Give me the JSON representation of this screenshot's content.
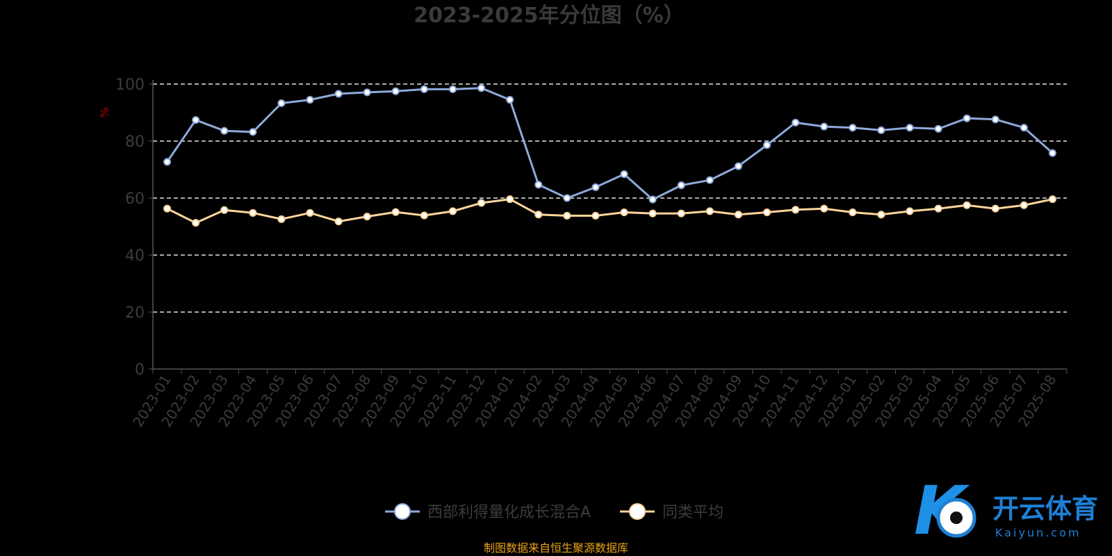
{
  "chart_data": {
    "type": "line",
    "title": "2023-2025年分位图（%）",
    "ylabel": "%",
    "ylim": [
      0,
      100
    ],
    "yticks": [
      0,
      20,
      40,
      60,
      80,
      100
    ],
    "grid": true,
    "legend_position": "bottom",
    "categories": [
      "2023-01",
      "2023-02",
      "2023-03",
      "2023-04",
      "2023-05",
      "2023-06",
      "2023-07",
      "2023-08",
      "2023-09",
      "2023-10",
      "2023-11",
      "2023-12",
      "2024-01",
      "2024-02",
      "2024-03",
      "2024-04",
      "2024-05",
      "2024-06",
      "2024-07",
      "2024-08",
      "2024-09",
      "2024-10",
      "2024-11",
      "2024-12",
      "2025-01",
      "2025-02",
      "2025-03",
      "2025-04",
      "2025-05",
      "2025-06",
      "2025-07",
      "2025-08"
    ],
    "series": [
      {
        "name": "西部利得量化成长混合A",
        "color": "#8eaadb",
        "values": [
          72.7,
          87.4,
          83.6,
          83.2,
          93.3,
          94.5,
          96.6,
          97.1,
          97.5,
          98.2,
          98.2,
          98.6,
          94.5,
          64.7,
          60.0,
          63.8,
          68.4,
          59.5,
          64.5,
          66.3,
          71.2,
          78.6,
          86.5,
          85.1,
          84.7,
          83.8,
          84.7,
          84.3,
          88.0,
          87.6,
          84.7,
          75.8
        ]
      },
      {
        "name": "同类平均",
        "color": "#ffd59a",
        "values": [
          56.3,
          51.3,
          55.8,
          54.8,
          52.6,
          54.8,
          51.8,
          53.5,
          55.1,
          53.9,
          55.4,
          58.3,
          59.6,
          54.2,
          53.8,
          53.8,
          55.0,
          54.6,
          54.6,
          55.4,
          54.2,
          55.0,
          55.9,
          56.3,
          55.0,
          54.2,
          55.4,
          56.3,
          57.5,
          56.3,
          57.5,
          59.6
        ]
      }
    ]
  },
  "source_note": "制图数据来自恒生聚源数据库",
  "watermark": {
    "brand": "开云体育",
    "domain": "Kaiyun.com",
    "logo_letters": "K"
  }
}
